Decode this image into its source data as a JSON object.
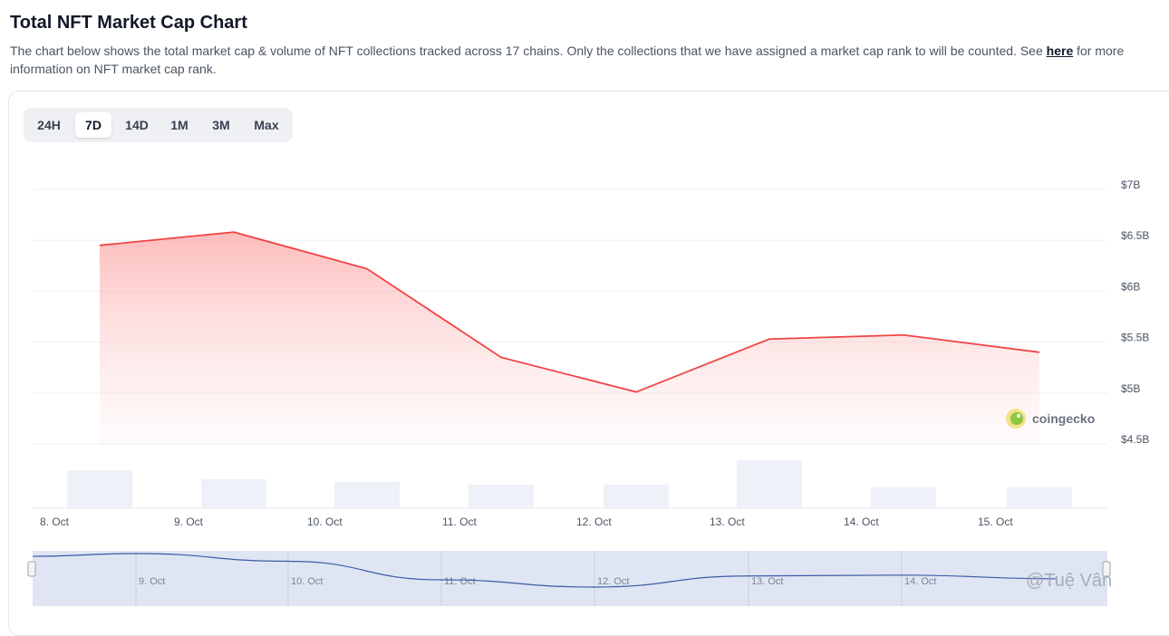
{
  "header": {
    "title": "Total NFT Market Cap Chart",
    "description": "The chart below shows the total market cap & volume of NFT collections tracked across 17 chains. Only the collections that we have assigned a market cap rank to will be counted. See ",
    "link_label": "here",
    "description_tail": " for more information on NFT market cap rank."
  },
  "tabs": [
    {
      "label": "24H",
      "active": false
    },
    {
      "label": "7D",
      "active": true
    },
    {
      "label": "14D",
      "active": false
    },
    {
      "label": "1M",
      "active": false
    },
    {
      "label": "3M",
      "active": false
    },
    {
      "label": "Max",
      "active": false
    }
  ],
  "brand": {
    "name": "coingecko",
    "icon": "gecko-logo-icon",
    "accent": "#8dc63f"
  },
  "watermark": "@Tuệ Vân",
  "colors": {
    "line": "#ef4444",
    "area": "#fecaca",
    "volume": "#eef1f7",
    "navigator": "#dfe5f2",
    "navigator_line": "#3b5ba8"
  },
  "chart_data": {
    "type": "area",
    "x": [
      "8. Oct",
      "9. Oct",
      "10. Oct",
      "11. Oct",
      "12. Oct",
      "13. Oct",
      "14. Oct",
      "15. Oct"
    ],
    "y_ticks": [
      "$7B",
      "$6.5B",
      "$6B",
      "$5.5B",
      "$5B",
      "$4.5B"
    ],
    "ylim": [
      4.5,
      7
    ],
    "series": [
      {
        "type": "area",
        "values": [
          6.45,
          6.58,
          6.22,
          5.35,
          5.01,
          5.53,
          5.57,
          5.4
        ]
      },
      {
        "type": "bar",
        "values": [
          0.42,
          0.32,
          0.29,
          0.26,
          0.26,
          0.53,
          0.23,
          0.23
        ]
      }
    ],
    "grid": true,
    "navigator_labels": [
      "9. Oct",
      "10. Oct",
      "11. Oct",
      "12. Oct",
      "13. Oct",
      "14. Oct"
    ]
  }
}
